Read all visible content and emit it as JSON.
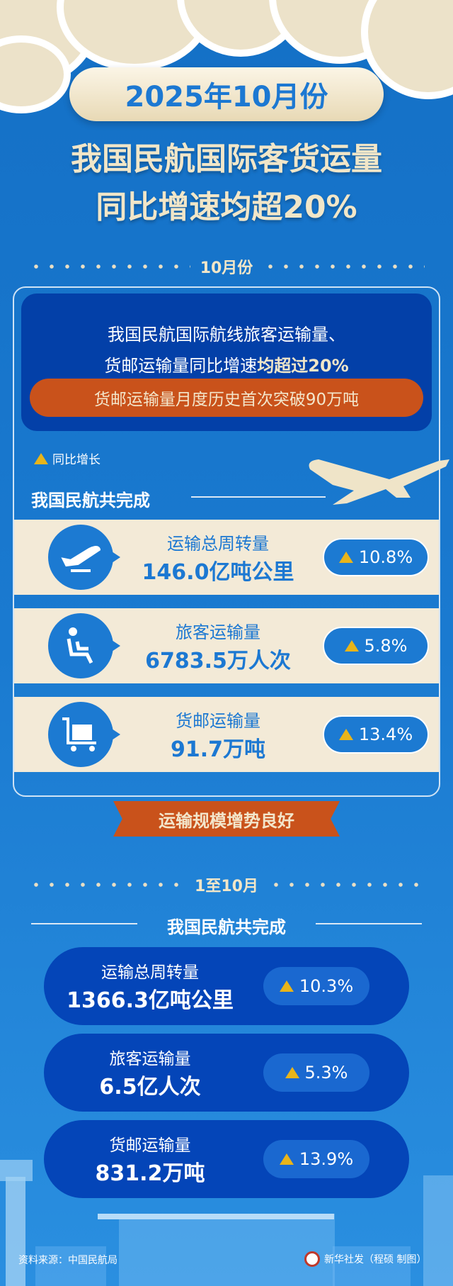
{
  "header": {
    "date_pill": "2025年10月份",
    "headline_1": "我国民航国际客货运量",
    "headline_2": "同比增速均超20%"
  },
  "october": {
    "section_label": "10月份",
    "summary_line1": "我国民航国际航线旅客运输量、",
    "summary_line2_plain": "货邮运输量同比增速",
    "summary_line2_bold": "均超过20%",
    "highlight": "货邮运输量月度历史首次突破90万吨",
    "legend": "同比增长",
    "subtitle": "我国民航共完成",
    "items": [
      {
        "icon": "plane-takeoff-icon",
        "name": "运输总周转量",
        "value": "146.0亿吨公里",
        "growth": "10.8%"
      },
      {
        "icon": "passenger-seat-icon",
        "name": "旅客运输量",
        "value": "6783.5万人次",
        "growth": "5.8%"
      },
      {
        "icon": "cargo-cart-icon",
        "name": "货邮运输量",
        "value": "91.7万吨",
        "growth": "13.4%"
      }
    ],
    "banner": "运输规模增势良好"
  },
  "ytd": {
    "section_label": "1至10月",
    "subtitle": "我国民航共完成",
    "items": [
      {
        "name": "运输总周转量",
        "value": "1366.3亿吨公里",
        "growth": "10.3%"
      },
      {
        "name": "旅客运输量",
        "value": "6.5亿人次",
        "growth": "5.3%"
      },
      {
        "name": "货邮运输量",
        "value": "831.2万吨",
        "growth": "13.9%"
      }
    ]
  },
  "footer": {
    "source": "资料来源：中国民航局",
    "credit": "新华社发（程硕 制图）"
  },
  "colors": {
    "background": "#1470c6",
    "cream": "#f3ead7",
    "orange": "#c9521b",
    "dark_blue": "#0340a8",
    "triangle": "#e8b41a"
  }
}
